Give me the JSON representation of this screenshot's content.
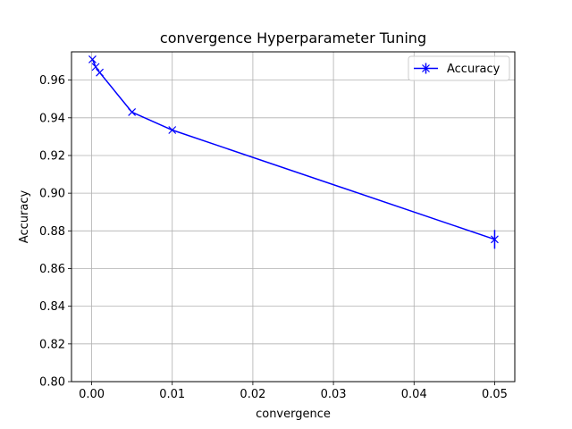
{
  "chart_data": {
    "type": "line",
    "title": "convergence Hyperparameter Tuning",
    "xlabel": "convergence",
    "ylabel": "Accuracy",
    "xlim": [
      -0.0025,
      0.0525
    ],
    "ylim": [
      0.8,
      0.975
    ],
    "xticks": [
      "0.00",
      "0.01",
      "0.02",
      "0.03",
      "0.04",
      "0.05"
    ],
    "yticks": [
      "0.80",
      "0.82",
      "0.84",
      "0.86",
      "0.88",
      "0.90",
      "0.92",
      "0.94",
      "0.96"
    ],
    "grid": true,
    "legend_position": "top-right",
    "series": [
      {
        "name": "Accuracy",
        "color": "#0000ff",
        "marker": "x",
        "x": [
          0.0001,
          0.0005,
          0.001,
          0.005,
          0.01,
          0.05
        ],
        "y": [
          0.971,
          0.967,
          0.964,
          0.943,
          0.9335,
          0.8755
        ],
        "error_bar": [
          0,
          0,
          0,
          0,
          0,
          0.005
        ]
      }
    ]
  }
}
